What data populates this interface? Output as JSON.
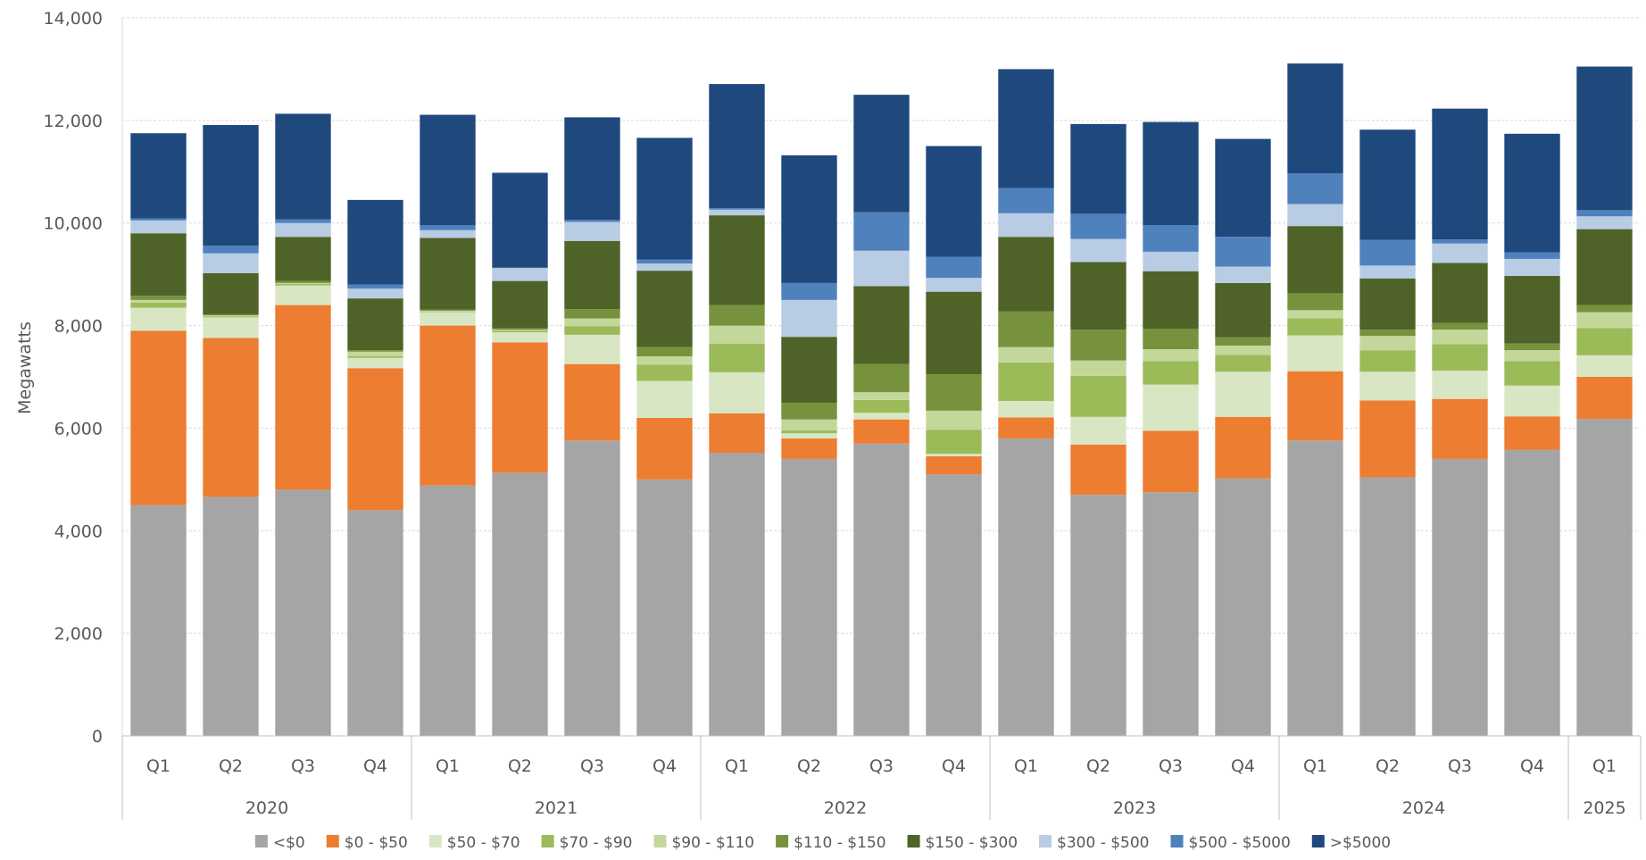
{
  "chart_data": {
    "type": "bar",
    "stacked": true,
    "ylabel": "Megawatts",
    "ylim": [
      0,
      14000
    ],
    "yticks": [
      0,
      2000,
      4000,
      6000,
      8000,
      10000,
      12000,
      14000
    ],
    "ytick_labels": [
      "0",
      "2,000",
      "4,000",
      "6,000",
      "8,000",
      "10,000",
      "12,000",
      "14,000"
    ],
    "grid": true,
    "legend_position": "bottom",
    "categories": [
      "Q1",
      "Q2",
      "Q3",
      "Q4",
      "Q1",
      "Q2",
      "Q3",
      "Q4",
      "Q1",
      "Q2",
      "Q3",
      "Q4",
      "Q1",
      "Q2",
      "Q3",
      "Q4",
      "Q1",
      "Q2",
      "Q3",
      "Q4",
      "Q1"
    ],
    "groups": [
      {
        "label": "2020",
        "count": 4
      },
      {
        "label": "2021",
        "count": 4
      },
      {
        "label": "2022",
        "count": 4
      },
      {
        "label": "2023",
        "count": 4
      },
      {
        "label": "2024",
        "count": 4
      },
      {
        "label": "2025",
        "count": 1
      }
    ],
    "series": [
      {
        "name": "<$0",
        "color": "#a5a5a5",
        "values": [
          4500,
          4660,
          4800,
          4400,
          4880,
          5130,
          5760,
          5000,
          5520,
          5400,
          5700,
          5100,
          5800,
          4700,
          4750,
          5020,
          5760,
          5040,
          5400,
          5580,
          6180
        ]
      },
      {
        "name": "$0 - $50",
        "color": "#ed7d31",
        "values": [
          3400,
          3100,
          3600,
          2770,
          3120,
          2540,
          1490,
          1200,
          770,
          400,
          470,
          350,
          410,
          980,
          1200,
          1200,
          1350,
          1500,
          1170,
          650,
          820
        ]
      },
      {
        "name": "$50 - $70",
        "color": "#d9e6c3",
        "values": [
          450,
          400,
          380,
          200,
          260,
          200,
          570,
          720,
          800,
          100,
          130,
          50,
          320,
          540,
          900,
          880,
          700,
          560,
          550,
          600,
          420
        ]
      },
      {
        "name": "$70 - $90",
        "color": "#9bbb59",
        "values": [
          100,
          20,
          30,
          30,
          10,
          30,
          170,
          320,
          560,
          60,
          250,
          470,
          750,
          800,
          460,
          330,
          330,
          420,
          520,
          480,
          530
        ]
      },
      {
        "name": "$90 - $110",
        "color": "#c4d79b",
        "values": [
          50,
          20,
          20,
          90,
          20,
          20,
          150,
          160,
          350,
          210,
          150,
          370,
          300,
          300,
          230,
          180,
          160,
          280,
          280,
          210,
          310
        ]
      },
      {
        "name": "$110 - $150",
        "color": "#76923c",
        "values": [
          80,
          20,
          40,
          30,
          20,
          30,
          180,
          180,
          400,
          320,
          550,
          710,
          700,
          600,
          400,
          160,
          330,
          120,
          130,
          130,
          140
        ]
      },
      {
        "name": "$150 - $300",
        "color": "#4f6228",
        "values": [
          1220,
          800,
          860,
          1010,
          1400,
          920,
          1330,
          1490,
          1750,
          1290,
          1520,
          1610,
          1450,
          1320,
          1120,
          1060,
          1310,
          1000,
          1170,
          1320,
          1480
        ]
      },
      {
        "name": "$300 - $500",
        "color": "#b8cce4",
        "values": [
          250,
          390,
          270,
          190,
          150,
          250,
          370,
          140,
          110,
          720,
          690,
          270,
          460,
          450,
          380,
          320,
          430,
          250,
          380,
          330,
          250
        ]
      },
      {
        "name": "$500 - $5000",
        "color": "#4f81bd",
        "values": [
          40,
          150,
          70,
          80,
          100,
          10,
          40,
          80,
          30,
          330,
          750,
          410,
          490,
          490,
          520,
          580,
          600,
          500,
          80,
          130,
          120
        ]
      },
      {
        "name": ">$5000",
        "color": "#1f497d",
        "values": [
          1660,
          2350,
          2060,
          1650,
          2150,
          1850,
          2000,
          2370,
          2420,
          2490,
          2290,
          2160,
          2320,
          1750,
          2010,
          1910,
          2140,
          2150,
          2550,
          2310,
          2800
        ]
      }
    ]
  }
}
